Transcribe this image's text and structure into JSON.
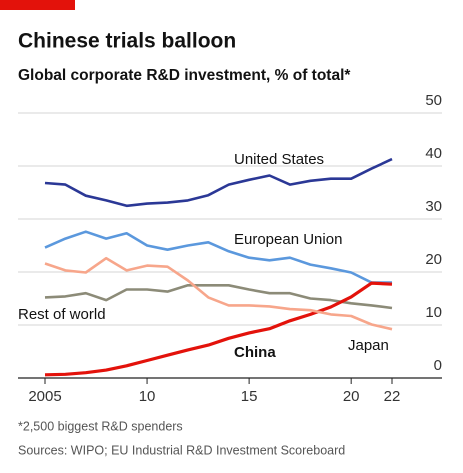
{
  "chart_data": {
    "type": "line",
    "title": "Chinese trials balloon",
    "subtitle": "Global corporate R&D investment, % of total*",
    "footnote": "*2,500 biggest R&D spenders",
    "source": "Sources: WIPO; EU Industrial R&D Investment Scoreboard",
    "x": [
      2005,
      2006,
      2007,
      2008,
      2009,
      2010,
      2011,
      2012,
      2013,
      2014,
      2015,
      2016,
      2017,
      2018,
      2019,
      2020,
      2021,
      2022
    ],
    "xlim": [
      2005,
      2022
    ],
    "xticks": [
      2005,
      {
        "value": 2010,
        "label": "10"
      },
      {
        "value": 2015,
        "label": "15"
      },
      {
        "value": 2020,
        "label": "20"
      },
      {
        "value": 2022,
        "label": "22"
      }
    ],
    "ylim": [
      0,
      50
    ],
    "yticks": [
      0,
      10,
      20,
      30,
      40,
      50
    ],
    "grid": true,
    "series": [
      {
        "name": "United States",
        "color": "#2b3896",
        "values": [
          36.8,
          36.5,
          34.4,
          33.5,
          32.5,
          32.9,
          33.1,
          33.5,
          34.5,
          36.5,
          37.4,
          38.2,
          36.5,
          37.2,
          37.6,
          37.6,
          39.5,
          41.3
        ]
      },
      {
        "name": "European Union",
        "color": "#5b98dd",
        "values": [
          24.6,
          26.3,
          27.6,
          26.3,
          27.3,
          25.0,
          24.2,
          25.0,
          25.6,
          23.9,
          22.7,
          22.2,
          22.7,
          21.4,
          20.7,
          19.9,
          18.0,
          18.0
        ]
      },
      {
        "name": "Rest of world",
        "color": "#8c8b78",
        "values": [
          15.2,
          15.4,
          16.0,
          14.7,
          16.7,
          16.7,
          16.3,
          17.5,
          17.5,
          17.5,
          16.7,
          16.0,
          16.0,
          15.0,
          14.7,
          14.1,
          13.7,
          13.2
        ]
      },
      {
        "name": "China",
        "color": "#e3120b",
        "values": [
          0.6,
          0.7,
          1.0,
          1.5,
          2.3,
          3.3,
          4.3,
          5.3,
          6.2,
          7.5,
          8.5,
          9.3,
          10.8,
          12.0,
          13.4,
          15.3,
          17.9,
          17.7
        ]
      },
      {
        "name": "Japan",
        "color": "#f7a68b",
        "values": [
          21.6,
          20.3,
          19.9,
          22.6,
          20.3,
          21.2,
          21.0,
          18.4,
          15.2,
          13.7,
          13.7,
          13.5,
          13.0,
          12.8,
          12.0,
          11.7,
          10.1,
          9.2
        ]
      }
    ]
  }
}
